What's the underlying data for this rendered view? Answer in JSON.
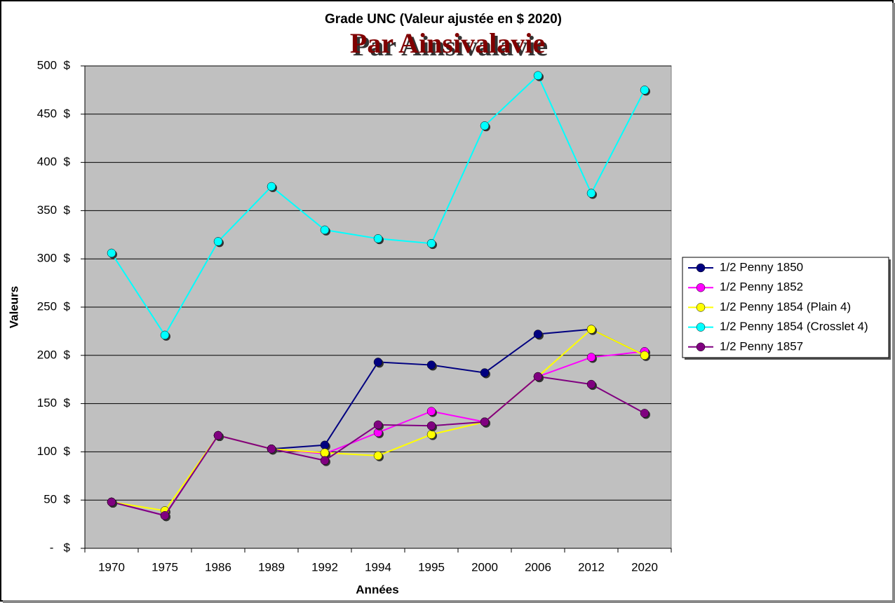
{
  "chart_data": {
    "type": "line",
    "title": "Grade UNC (Valeur ajustée en $ 2020)",
    "subtitle": "Par Ainsivalavie",
    "x_label": "Années",
    "y_label": "Valeurs",
    "categories": [
      "1970",
      "1975",
      "1986",
      "1989",
      "1992",
      "1994",
      "1995",
      "2000",
      "2006",
      "2012",
      "2020"
    ],
    "series": [
      {
        "name": "1/2 Penny 1850",
        "color": "#000080",
        "values": [
          48,
          34,
          117,
          103,
          107,
          193,
          190,
          182,
          222,
          227,
          200
        ]
      },
      {
        "name": "1/2 Penny 1852",
        "color": "#ff00ff",
        "values": [
          48,
          34,
          117,
          103,
          98,
          120,
          142,
          131,
          178,
          198,
          204
        ]
      },
      {
        "name": "1/2 Penny 1854 (Plain 4)",
        "color": "#ffff00",
        "values": [
          48,
          39,
          117,
          103,
          99,
          96,
          118,
          131,
          178,
          227,
          200
        ]
      },
      {
        "name": "1/2 Penny 1854 (Crosslet 4)",
        "color": "#00ffff",
        "values": [
          306,
          221,
          318,
          375,
          330,
          321,
          316,
          438,
          490,
          368,
          475
        ]
      },
      {
        "name": "1/2 Penny 1857",
        "color": "#800080",
        "values": [
          48,
          34,
          117,
          103,
          91,
          128,
          127,
          131,
          178,
          170,
          140
        ]
      }
    ],
    "ylim": [
      0,
      500
    ],
    "yticks": [
      {
        "value": 0,
        "label": "-   $"
      },
      {
        "value": 50,
        "label": "50  $"
      },
      {
        "value": 100,
        "label": "100  $"
      },
      {
        "value": 150,
        "label": "150  $"
      },
      {
        "value": 200,
        "label": "200  $"
      },
      {
        "value": 250,
        "label": "250  $"
      },
      {
        "value": 300,
        "label": "300  $"
      },
      {
        "value": 350,
        "label": "350  $"
      },
      {
        "value": 400,
        "label": "400  $"
      },
      {
        "value": 450,
        "label": "450  $"
      },
      {
        "value": 500,
        "label": "500  $"
      }
    ],
    "grid": true,
    "legend": "right",
    "plot_background": "#c0c0c0"
  }
}
